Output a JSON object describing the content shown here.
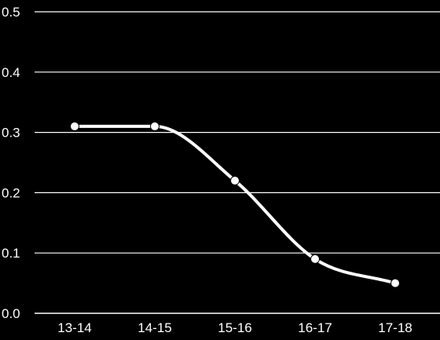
{
  "chart_data": {
    "type": "line",
    "title": "",
    "xlabel": "",
    "ylabel": "",
    "categories": [
      "13-14",
      "14-15",
      "15-16",
      "16-17",
      "17-18"
    ],
    "series": [
      {
        "values": [
          0.31,
          0.31,
          0.22,
          0.09,
          0.05
        ]
      }
    ],
    "ylim": [
      0.0,
      0.5
    ],
    "yticks": [
      "0.0",
      "0.1",
      "0.2",
      "0.3",
      "0.4",
      "0.5"
    ],
    "grid": true,
    "smooth": true,
    "markers": true,
    "legend": "none",
    "colors": {
      "background": "#000000",
      "line": "#ffffff",
      "grid": "#ffffff",
      "text": "#ffffff"
    }
  }
}
